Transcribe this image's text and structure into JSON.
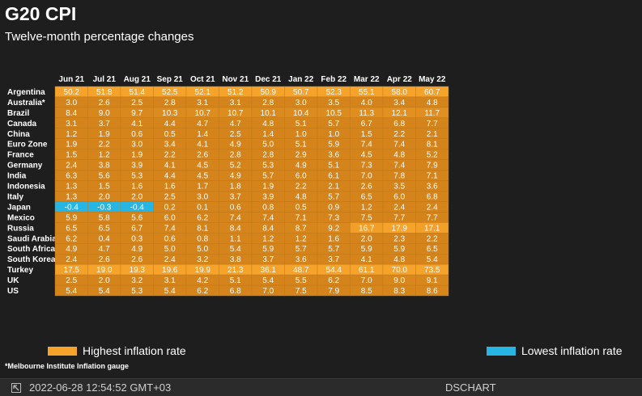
{
  "title": "G20 CPI",
  "subtitle": "Twelve-month percentage changes",
  "legend": {
    "high": {
      "label": "Highest inflation rate",
      "color": "#f5a32a"
    },
    "low": {
      "label": "Lowest inflation rate",
      "color": "#27b6e4"
    }
  },
  "footnote": "*Melbourne Institute Inflation gauge",
  "footer": {
    "timestamp": "2022-06-28 12:54:52 GMT+03",
    "source": "DSCHART",
    "icon": "dschart-logo-icon"
  },
  "chart_data": {
    "type": "heatmap",
    "title": "G20 CPI",
    "subtitle": "Twelve-month percentage changes",
    "columns": [
      "Jun 21",
      "Jul 21",
      "Aug 21",
      "Sep 21",
      "Oct 21",
      "Nov 21",
      "Dec 21",
      "Jan 22",
      "Feb 22",
      "Mar 22",
      "Apr 22",
      "May 22"
    ],
    "rows": [
      {
        "name": "Argentina",
        "values": [
          50.2,
          51.8,
          51.4,
          52.5,
          52.1,
          51.2,
          50.9,
          50.7,
          52.3,
          55.1,
          58.0,
          60.7
        ]
      },
      {
        "name": "Australia*",
        "values": [
          3.0,
          2.6,
          2.5,
          2.8,
          3.1,
          3.1,
          2.8,
          3.0,
          3.5,
          4.0,
          3.4,
          4.8
        ]
      },
      {
        "name": "Brazil",
        "values": [
          8.4,
          9.0,
          9.7,
          10.3,
          10.7,
          10.7,
          10.1,
          10.4,
          10.5,
          11.3,
          12.1,
          11.7
        ]
      },
      {
        "name": "Canada",
        "values": [
          3.1,
          3.7,
          4.1,
          4.4,
          4.7,
          4.7,
          4.8,
          5.1,
          5.7,
          6.7,
          6.8,
          7.7
        ]
      },
      {
        "name": "China",
        "values": [
          1.2,
          1.9,
          0.6,
          0.5,
          1.4,
          2.5,
          1.4,
          1.0,
          1.0,
          1.5,
          2.2,
          2.1
        ]
      },
      {
        "name": "Euro Zone",
        "values": [
          1.9,
          2.2,
          3.0,
          3.4,
          4.1,
          4.9,
          5.0,
          5.1,
          5.9,
          7.4,
          7.4,
          8.1
        ]
      },
      {
        "name": "France",
        "values": [
          1.5,
          1.2,
          1.9,
          2.2,
          2.6,
          2.8,
          2.8,
          2.9,
          3.6,
          4.5,
          4.8,
          5.2
        ]
      },
      {
        "name": "Germany",
        "values": [
          2.4,
          3.8,
          3.9,
          4.1,
          4.5,
          5.2,
          5.3,
          4.9,
          5.1,
          7.3,
          7.4,
          7.9
        ]
      },
      {
        "name": "India",
        "values": [
          6.3,
          5.6,
          5.3,
          4.4,
          4.5,
          4.9,
          5.7,
          6.0,
          6.1,
          7.0,
          7.8,
          7.1
        ]
      },
      {
        "name": "Indonesia",
        "values": [
          1.3,
          1.5,
          1.6,
          1.6,
          1.7,
          1.8,
          1.9,
          2.2,
          2.1,
          2.6,
          3.5,
          3.6
        ]
      },
      {
        "name": "Italy",
        "values": [
          1.3,
          2.0,
          2.0,
          2.5,
          3.0,
          3.7,
          3.9,
          4.8,
          5.7,
          6.5,
          6.0,
          6.8
        ]
      },
      {
        "name": "Japan",
        "values": [
          -0.4,
          -0.3,
          -0.4,
          0.2,
          0.1,
          0.6,
          0.8,
          0.5,
          0.9,
          1.2,
          2.4,
          2.4
        ]
      },
      {
        "name": "Mexico",
        "values": [
          5.9,
          5.8,
          5.6,
          6.0,
          6.2,
          7.4,
          7.4,
          7.1,
          7.3,
          7.5,
          7.7,
          7.7
        ]
      },
      {
        "name": "Russia",
        "values": [
          6.5,
          6.5,
          6.7,
          7.4,
          8.1,
          8.4,
          8.4,
          8.7,
          9.2,
          16.7,
          17.9,
          17.1
        ]
      },
      {
        "name": "Saudi Arabia",
        "values": [
          6.2,
          0.4,
          0.3,
          0.6,
          0.8,
          1.1,
          1.2,
          1.2,
          1.6,
          2.0,
          2.3,
          2.2
        ]
      },
      {
        "name": "South Africa",
        "values": [
          4.9,
          4.7,
          4.9,
          5.0,
          5.0,
          5.4,
          5.9,
          5.7,
          5.7,
          5.9,
          5.9,
          6.5
        ]
      },
      {
        "name": "South Korea",
        "values": [
          2.4,
          2.6,
          2.6,
          2.4,
          3.2,
          3.8,
          3.7,
          3.6,
          3.7,
          4.1,
          4.8,
          5.4
        ]
      },
      {
        "name": "Turkey",
        "values": [
          17.5,
          19.0,
          19.3,
          19.6,
          19.9,
          21.3,
          36.1,
          48.7,
          54.4,
          61.1,
          70.0,
          73.5
        ]
      },
      {
        "name": "UK",
        "values": [
          2.5,
          2.0,
          3.2,
          3.1,
          4.2,
          5.1,
          5.4,
          5.5,
          6.2,
          7.0,
          9.0,
          9.1
        ]
      },
      {
        "name": "US",
        "values": [
          5.4,
          5.4,
          5.3,
          5.4,
          6.2,
          6.8,
          7.0,
          7.5,
          7.9,
          8.5,
          8.3,
          8.6
        ]
      }
    ],
    "color_scale": {
      "low": "#27b6e4",
      "high": "#f5a32a"
    },
    "grid": false
  }
}
